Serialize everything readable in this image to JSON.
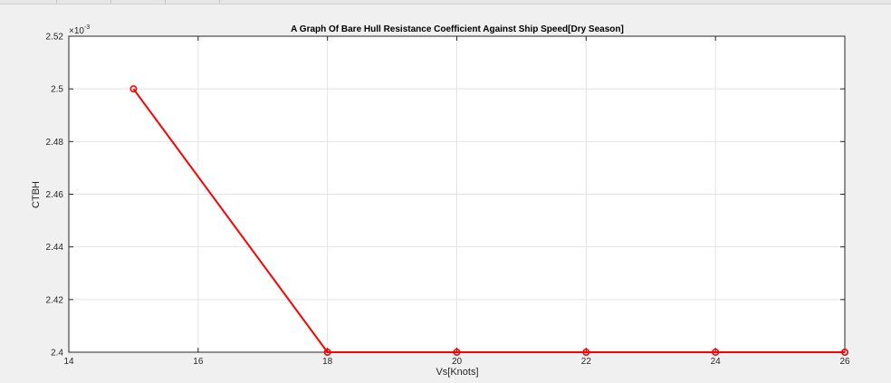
{
  "chart_data": {
    "type": "line",
    "title": "A Graph Of Bare Hull Resistance Coefficient Against Ship Speed[Dry Season]",
    "xlabel": "Vs[Knots]",
    "ylabel": "CTBH",
    "y_exponent_label": "×10",
    "y_exponent_power": "-3",
    "xlim": [
      14,
      26
    ],
    "ylim": [
      2.4,
      2.52
    ],
    "x_ticks": [
      14,
      16,
      18,
      20,
      22,
      24,
      26
    ],
    "y_ticks": [
      2.4,
      2.42,
      2.44,
      2.46,
      2.48,
      2.5,
      2.52
    ],
    "grid": true,
    "line_color": "#ff0000",
    "marker": "circle",
    "series": [
      {
        "x": [
          15,
          18,
          20,
          22,
          24,
          26
        ],
        "y": [
          2.5,
          2.4,
          2.4,
          2.4,
          2.4,
          2.4
        ]
      }
    ]
  }
}
